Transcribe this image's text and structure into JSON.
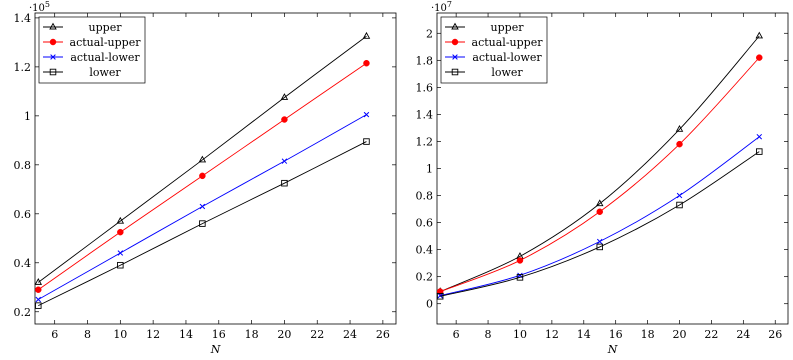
{
  "chart_data": [
    {
      "type": "line",
      "xlabel": "N",
      "ylabel": "",
      "multiplier": "·10",
      "multiplier_exp": "5",
      "xlim": [
        4.8,
        26.8
      ],
      "ylim": [
        0.15,
        1.42
      ],
      "xticks": [
        6,
        8,
        10,
        12,
        14,
        16,
        18,
        20,
        22,
        24,
        26
      ],
      "yticks": [
        0.2,
        0.4,
        0.6,
        0.8,
        1,
        1.2,
        1.4
      ],
      "ytick_labels": [
        "0.2",
        "0.4",
        "0.6",
        "0.8",
        "1",
        "1.2",
        "1.4"
      ],
      "legend_position": "top-left",
      "x": [
        5,
        10,
        15,
        20,
        25
      ],
      "series": [
        {
          "name": "upper",
          "color": "#000000",
          "marker": "triangle",
          "values": [
            0.32,
            0.57,
            0.82,
            1.075,
            1.325
          ]
        },
        {
          "name": "actual-upper",
          "color": "#ff0000",
          "marker": "circle",
          "values": [
            0.29,
            0.525,
            0.755,
            0.985,
            1.215
          ]
        },
        {
          "name": "actual-lower",
          "color": "#0000ff",
          "marker": "x",
          "values": [
            0.25,
            0.44,
            0.63,
            0.815,
            1.005
          ]
        },
        {
          "name": "lower",
          "color": "#000000",
          "marker": "square",
          "values": [
            0.225,
            0.39,
            0.56,
            0.725,
            0.895
          ]
        }
      ]
    },
    {
      "type": "line",
      "xlabel": "N",
      "ylabel": "",
      "multiplier": "·10",
      "multiplier_exp": "7",
      "xlim": [
        4.8,
        26.8
      ],
      "ylim": [
        -0.15,
        2.15
      ],
      "xticks": [
        6,
        8,
        10,
        12,
        14,
        16,
        18,
        20,
        22,
        24,
        26
      ],
      "yticks": [
        0,
        0.2,
        0.4,
        0.6,
        0.8,
        1,
        1.2,
        1.4,
        1.6,
        1.8,
        2
      ],
      "ytick_labels": [
        "0",
        "0.2",
        "0.4",
        "0.6",
        "0.8",
        "1",
        "1.2",
        "1.4",
        "1.6",
        "1.8",
        "2"
      ],
      "legend_position": "top-left",
      "x": [
        5,
        10,
        15,
        20,
        25
      ],
      "series": [
        {
          "name": "upper",
          "color": "#000000",
          "marker": "triangle",
          "values": [
            0.09,
            0.35,
            0.74,
            1.29,
            1.98
          ]
        },
        {
          "name": "actual-upper",
          "color": "#ff0000",
          "marker": "circle",
          "values": [
            0.09,
            0.32,
            0.68,
            1.18,
            1.82
          ]
        },
        {
          "name": "actual-lower",
          "color": "#0000ff",
          "marker": "x",
          "values": [
            0.06,
            0.21,
            0.46,
            0.8,
            1.235
          ]
        },
        {
          "name": "lower",
          "color": "#000000",
          "marker": "square",
          "values": [
            0.055,
            0.195,
            0.42,
            0.73,
            1.125
          ]
        }
      ]
    }
  ]
}
